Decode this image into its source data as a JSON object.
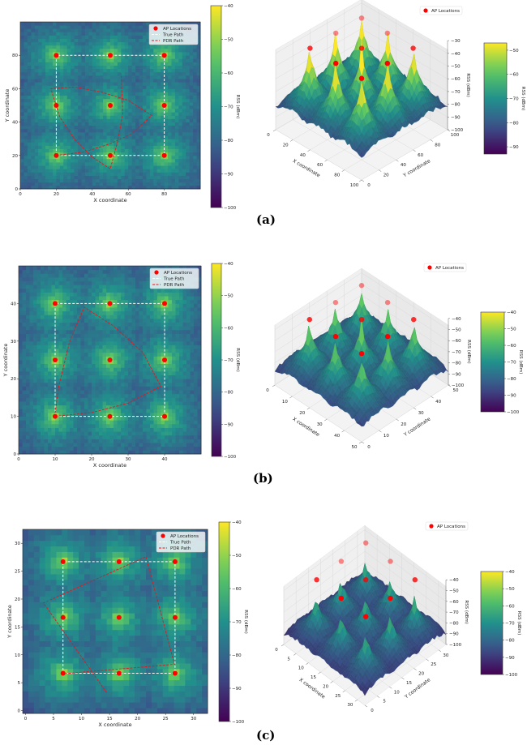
{
  "figure": {
    "panel_labels": [
      "(a)",
      "(b)",
      "(c)"
    ]
  },
  "colors": {
    "ap_marker": "#ff0000",
    "true_path": "#ffffff",
    "pdr_path": "#e8141c",
    "colormap": "viridis"
  },
  "chart_data": [
    {
      "type": "heatmap",
      "xlabel": "X coordinate",
      "ylabel": "Y coordinate",
      "xlim": [
        0,
        100
      ],
      "ylim": [
        0,
        100
      ],
      "xticks": [
        0,
        20,
        40,
        60,
        80
      ],
      "yticks": [
        0,
        20,
        40,
        60,
        80
      ],
      "colorbar": {
        "label": "RSS (dBm)",
        "range": [
          -100,
          -40
        ],
        "ticks": [
          -40,
          -50,
          -60,
          -70,
          -80,
          -90,
          -100
        ]
      },
      "legend": {
        "placement": "top-right",
        "entries": [
          "AP Locations",
          "True Path",
          "PDR Path"
        ]
      },
      "ap_locations": [
        [
          20,
          20
        ],
        [
          50,
          20
        ],
        [
          80,
          20
        ],
        [
          20,
          50
        ],
        [
          50,
          50
        ],
        [
          80,
          50
        ],
        [
          20,
          80
        ],
        [
          50,
          80
        ],
        [
          80,
          80
        ]
      ],
      "true_path": [
        [
          20,
          20
        ],
        [
          80,
          20
        ],
        [
          80,
          80
        ],
        [
          20,
          80
        ],
        [
          20,
          20
        ]
      ],
      "pdr_path": [
        [
          20,
          20
        ],
        [
          35,
          22
        ],
        [
          50,
          27
        ],
        [
          62,
          33
        ],
        [
          73,
          44
        ],
        [
          60,
          53
        ],
        [
          45,
          58
        ],
        [
          30,
          61
        ],
        [
          17,
          60
        ],
        [
          22,
          43
        ],
        [
          30,
          30
        ],
        [
          40,
          19
        ],
        [
          50,
          12
        ],
        [
          54,
          28
        ],
        [
          57,
          45
        ],
        [
          56,
          69
        ]
      ]
    },
    {
      "type": "surface",
      "xlabel": "X coordinate",
      "ylabel": "Y coordinate",
      "zlabel": "RSS (dBm)",
      "xlim": [
        0,
        100
      ],
      "ylim": [
        0,
        100
      ],
      "zlim": [
        -100,
        -30
      ],
      "xticks": [
        0,
        20,
        40,
        60,
        80,
        100
      ],
      "yticks": [
        0,
        20,
        40,
        60,
        80,
        100
      ],
      "zticks": [
        -30,
        -40,
        -50,
        -60,
        -70,
        -80,
        -90,
        -100
      ],
      "colorbar": {
        "label": "RSS (dBm)",
        "range": [
          -93,
          -47
        ],
        "ticks": [
          -50,
          -60,
          -70,
          -80,
          -90
        ]
      },
      "legend": {
        "placement": "top-right",
        "entries": [
          "AP Locations"
        ]
      },
      "ap_locations": [
        [
          20,
          20
        ],
        [
          50,
          20
        ],
        [
          80,
          20
        ],
        [
          20,
          50
        ],
        [
          50,
          50
        ],
        [
          80,
          50
        ],
        [
          20,
          80
        ],
        [
          50,
          80
        ],
        [
          80,
          80
        ]
      ]
    },
    {
      "type": "heatmap",
      "xlabel": "X coordinate",
      "ylabel": "Y coordinate",
      "xlim": [
        0,
        50
      ],
      "ylim": [
        0,
        50
      ],
      "xticks": [
        0,
        10,
        20,
        30,
        40
      ],
      "yticks": [
        0,
        10,
        20,
        30,
        40
      ],
      "colorbar": {
        "label": "RSS (dBm)",
        "range": [
          -100,
          -40
        ],
        "ticks": [
          -40,
          -50,
          -60,
          -70,
          -80,
          -90,
          -100
        ]
      },
      "legend": {
        "placement": "top-right",
        "entries": [
          "AP Locations",
          "True Path",
          "PDR Path"
        ]
      },
      "ap_locations": [
        [
          10,
          10
        ],
        [
          25,
          10
        ],
        [
          40,
          10
        ],
        [
          10,
          25
        ],
        [
          25,
          25
        ],
        [
          40,
          25
        ],
        [
          10,
          40
        ],
        [
          25,
          40
        ],
        [
          40,
          40
        ]
      ],
      "true_path": [
        [
          10,
          10
        ],
        [
          40,
          10
        ],
        [
          40,
          40
        ],
        [
          10,
          40
        ],
        [
          10,
          10
        ]
      ],
      "pdr_path": [
        [
          10,
          10
        ],
        [
          20,
          11
        ],
        [
          30,
          13.5
        ],
        [
          39,
          18
        ],
        [
          34,
          27
        ],
        [
          26,
          34
        ],
        [
          18,
          39
        ],
        [
          14,
          30
        ],
        [
          11,
          18
        ],
        [
          10,
          11
        ]
      ]
    },
    {
      "type": "surface",
      "xlabel": "X coordinate",
      "ylabel": "Y coordinate",
      "zlabel": "RSS (dBm)",
      "xlim": [
        0,
        50
      ],
      "ylim": [
        0,
        50
      ],
      "zlim": [
        -100,
        -40
      ],
      "xticks": [
        0,
        10,
        20,
        30,
        40,
        50
      ],
      "yticks": [
        0,
        10,
        20,
        30,
        40,
        50
      ],
      "zticks": [
        -40,
        -50,
        -60,
        -70,
        -80,
        -90,
        -100
      ],
      "colorbar": {
        "label": "RSS (dBm)",
        "range": [
          -100,
          -40
        ],
        "ticks": [
          -40,
          -50,
          -60,
          -70,
          -80,
          -90,
          -100
        ]
      },
      "legend": {
        "placement": "top-right",
        "entries": [
          "AP Locations"
        ]
      },
      "ap_locations": [
        [
          10,
          10
        ],
        [
          25,
          10
        ],
        [
          40,
          10
        ],
        [
          10,
          25
        ],
        [
          25,
          25
        ],
        [
          40,
          25
        ],
        [
          10,
          40
        ],
        [
          25,
          40
        ],
        [
          40,
          40
        ]
      ]
    },
    {
      "type": "heatmap",
      "xlabel": "X coordinate",
      "ylabel": "Y coordinate",
      "xlim": [
        -0.5,
        32.5
      ],
      "ylim": [
        -0.5,
        32.5
      ],
      "xticks": [
        0,
        5,
        10,
        15,
        20,
        25,
        30
      ],
      "yticks": [
        0,
        5,
        10,
        15,
        20,
        25,
        30
      ],
      "colorbar": {
        "label": "RSS (dBm)",
        "range": [
          -100,
          -40
        ],
        "ticks": [
          -40,
          -50,
          -60,
          -70,
          -80,
          -90,
          -100
        ]
      },
      "legend": {
        "placement": "top-right",
        "entries": [
          "AP Locations",
          "True Path",
          "PDR Path"
        ]
      },
      "ap_locations": [
        [
          6.7,
          6.7
        ],
        [
          16.7,
          6.7
        ],
        [
          26.7,
          6.7
        ],
        [
          6.7,
          16.7
        ],
        [
          16.7,
          16.7
        ],
        [
          26.7,
          16.7
        ],
        [
          6.7,
          26.7
        ],
        [
          16.7,
          26.7
        ],
        [
          26.7,
          26.7
        ]
      ],
      "true_path": [
        [
          6.7,
          6.7
        ],
        [
          26.7,
          6.7
        ],
        [
          26.7,
          26.7
        ],
        [
          6.7,
          26.7
        ],
        [
          6.7,
          6.7
        ]
      ],
      "pdr_path": [
        [
          14.5,
          3.2
        ],
        [
          3.2,
          19.3
        ],
        [
          21.5,
          27.6
        ],
        [
          26.6,
          8.3
        ],
        [
          6.7,
          6.6
        ]
      ]
    },
    {
      "type": "surface",
      "xlabel": "X coordinate",
      "ylabel": "Y coordinate",
      "zlabel": "RSS (dBm)",
      "xlim": [
        0,
        33
      ],
      "ylim": [
        0,
        33
      ],
      "zlim": [
        -100,
        -40
      ],
      "xticks": [
        0,
        5,
        10,
        15,
        20,
        25,
        30
      ],
      "yticks": [
        0,
        5,
        10,
        15,
        20,
        25,
        30
      ],
      "zticks": [
        -40,
        -50,
        -60,
        -70,
        -80,
        -90,
        -100
      ],
      "colorbar": {
        "label": "RSS (dBm)",
        "range": [
          -100,
          -40
        ],
        "ticks": [
          -40,
          -50,
          -60,
          -70,
          -80,
          -90,
          -100
        ]
      },
      "legend": {
        "placement": "top-right",
        "entries": [
          "AP Locations"
        ]
      },
      "ap_locations": [
        [
          6.7,
          6.7
        ],
        [
          16.7,
          6.7
        ],
        [
          26.7,
          6.7
        ],
        [
          6.7,
          16.7
        ],
        [
          16.7,
          16.7
        ],
        [
          26.7,
          16.7
        ],
        [
          6.7,
          26.7
        ],
        [
          16.7,
          26.7
        ],
        [
          26.7,
          26.7
        ]
      ]
    }
  ]
}
